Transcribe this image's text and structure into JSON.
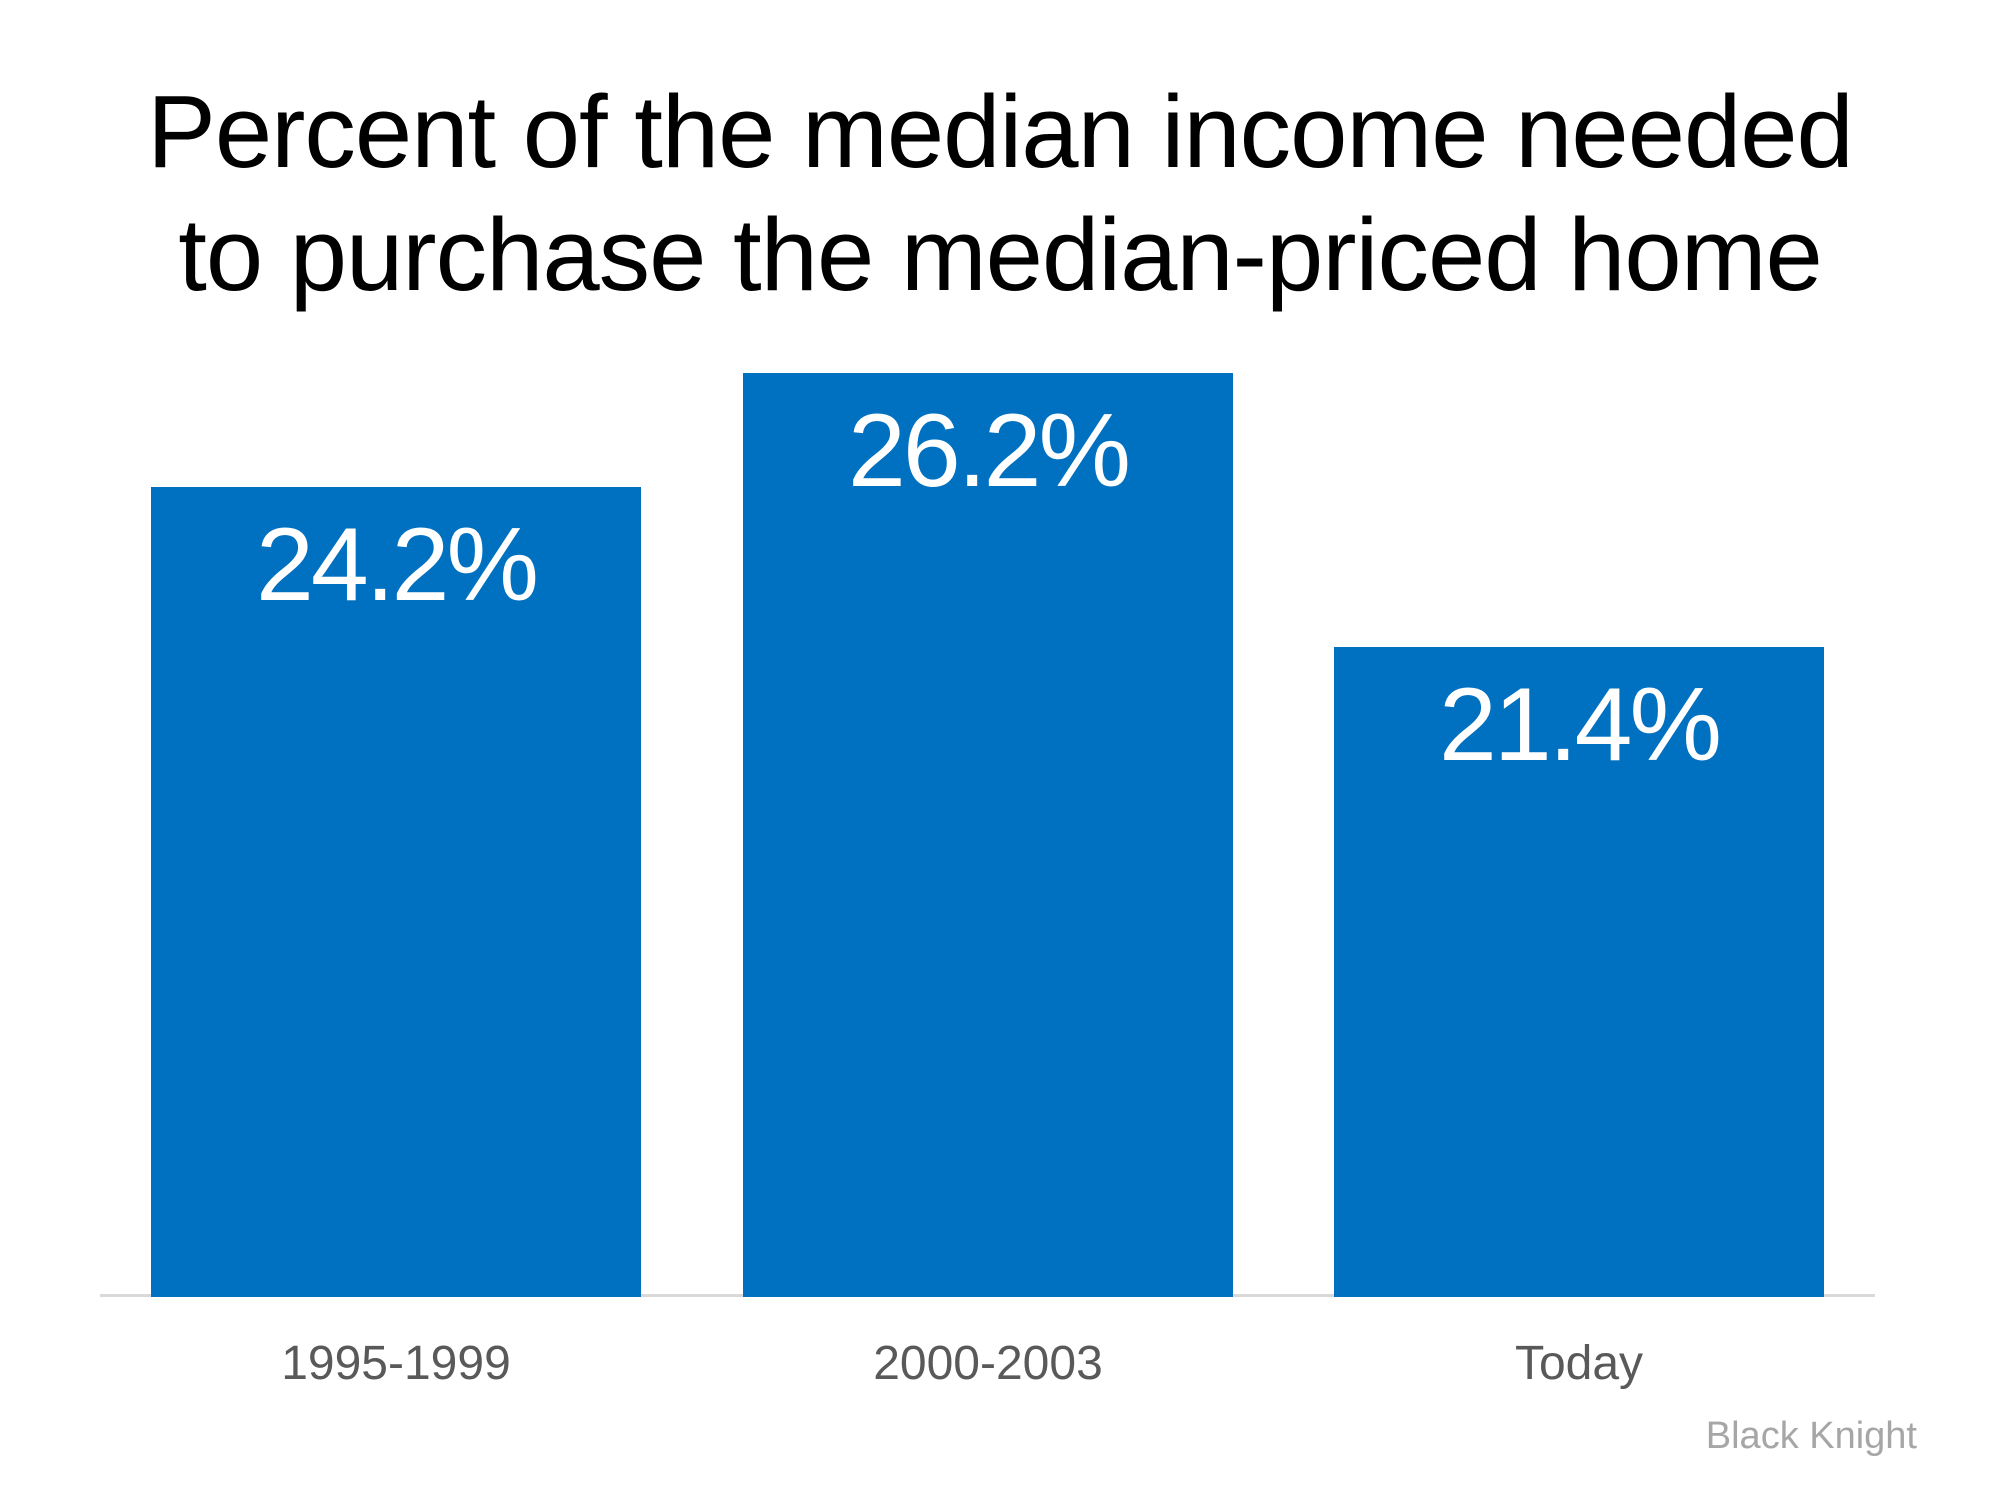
{
  "title": {
    "lines": [
      "Percent of the median income needed",
      "to purchase the median-priced home"
    ],
    "color": "#000000"
  },
  "source": {
    "label": "Black Knight",
    "color": "#a6a6a6"
  },
  "chart_data": {
    "type": "bar",
    "title": "Percent of the median income needed to purchase the median-priced home",
    "categories": [
      "1995-1999",
      "2000-2003",
      "Today"
    ],
    "values": [
      24.2,
      26.2,
      21.4
    ],
    "value_labels": [
      "24.2%",
      "26.2%",
      "21.4%"
    ],
    "ylabel": "",
    "xlabel": "",
    "ylim": [
      10,
      28
    ],
    "grid": false,
    "legend": false,
    "bar_color": "#0070c0",
    "value_label_color": "#ffffff",
    "category_label_color": "#595959",
    "axis_line_color": "#d9d9d9",
    "source": "Black Knight"
  }
}
